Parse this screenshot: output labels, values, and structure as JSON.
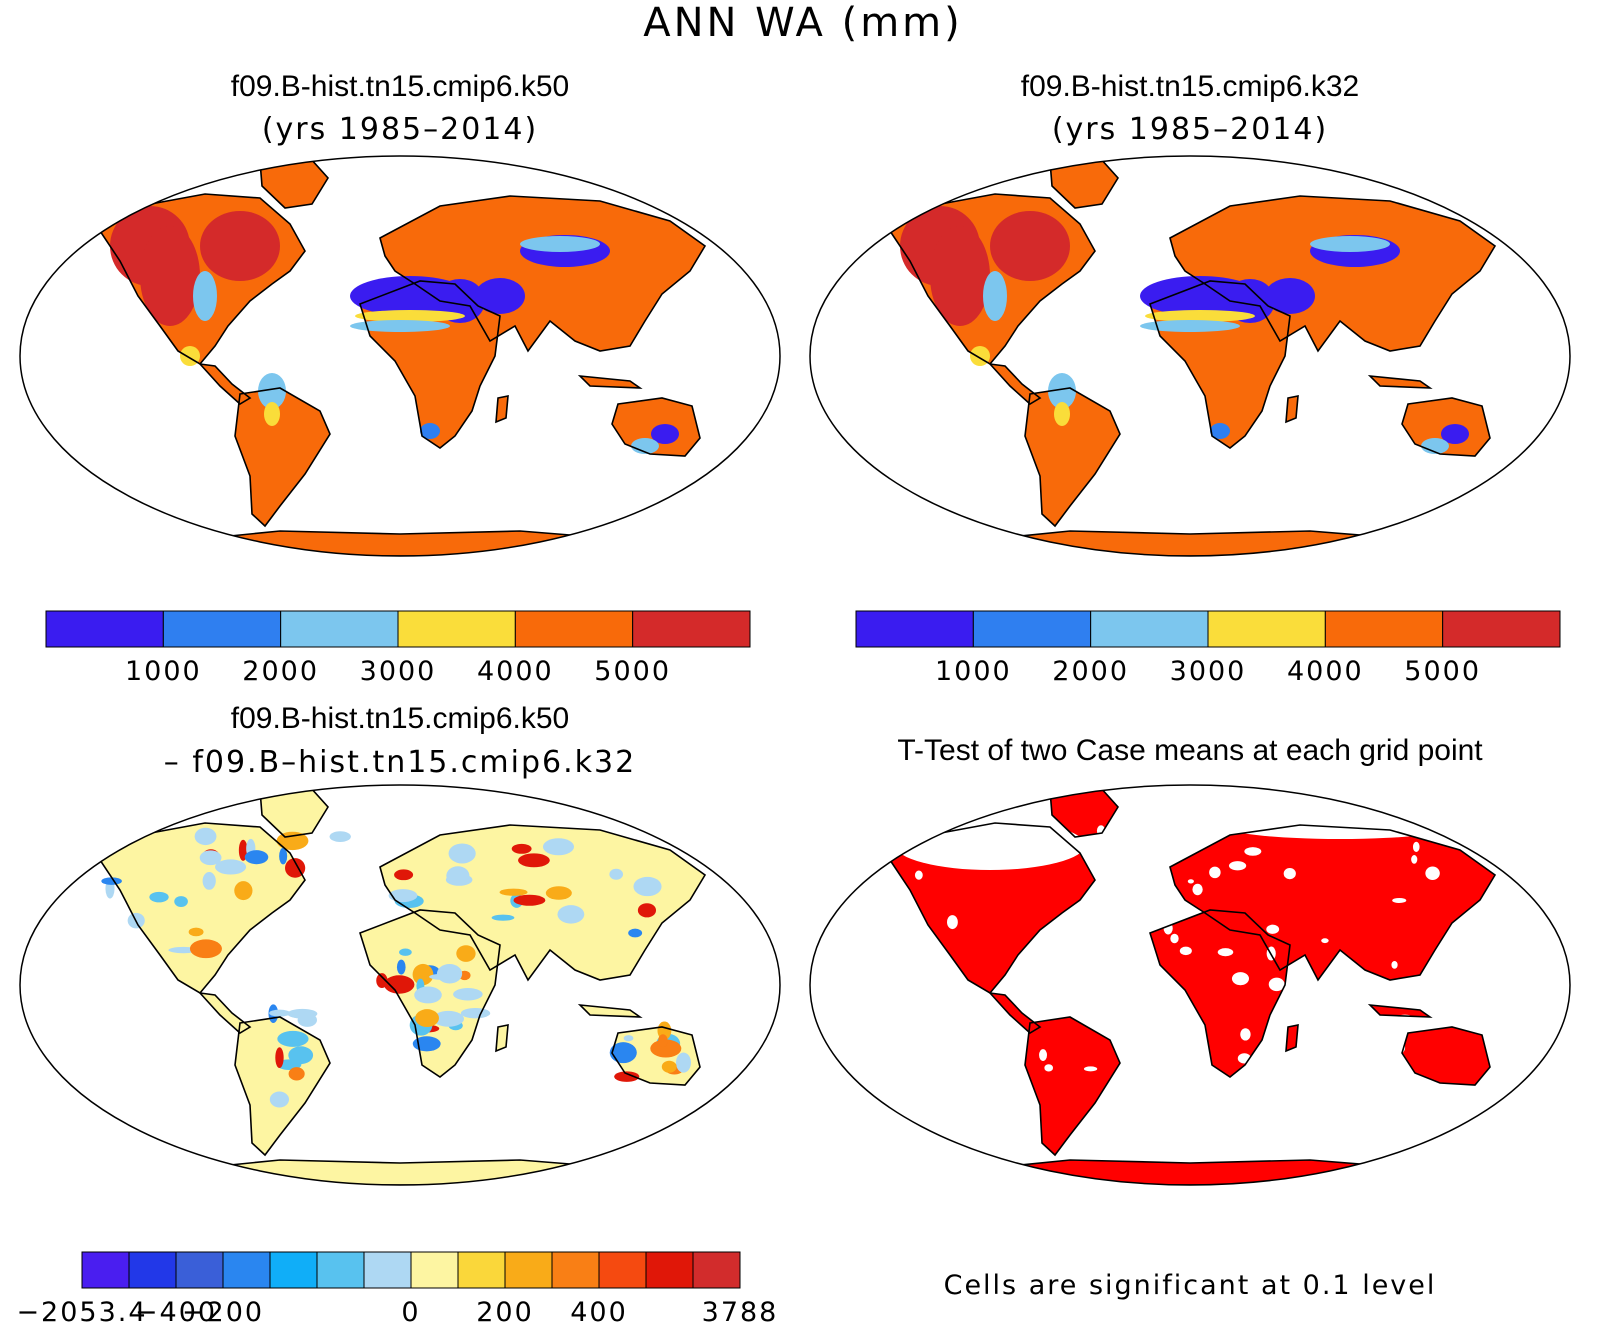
{
  "figure": {
    "title": "ANN WA (mm)"
  },
  "panels": [
    {
      "id": "a",
      "title": "f09.B-hist.tn15.cmip6.k50",
      "subtitle": "(yrs 1985–2014)"
    },
    {
      "id": "b",
      "title": "f09.B-hist.tn15.cmip6.k32",
      "subtitle": "(yrs 1985–2014)"
    },
    {
      "id": "c",
      "title": "f09.B-hist.tn15.cmip6.k50",
      "subtitle": "– f09.B–hist.tn15.cmip6.k32"
    },
    {
      "id": "d",
      "title": "T-Test of two Case means at each grid point",
      "subtitle": ""
    }
  ],
  "colorbars": {
    "abs": {
      "colors": [
        "#3a1cf0",
        "#2f7ff0",
        "#7cc6ee",
        "#fadd3a",
        "#f86a0a",
        "#d42a2a"
      ],
      "labels": [
        "1000",
        "2000",
        "3000",
        "4000",
        "5000"
      ]
    },
    "diff": {
      "colors": [
        "#4a1ef0",
        "#2238e8",
        "#3a5fd8",
        "#2a86f0",
        "#10aef8",
        "#58c2ef",
        "#aed8f3",
        "#fdf5a2",
        "#fad73a",
        "#f9ab18",
        "#f97f15",
        "#f54a10",
        "#e01708",
        "#d22c2c"
      ],
      "labels": [
        "−2053.4",
        "−400",
        "−200",
        "0",
        "200",
        "400",
        "3788"
      ]
    }
  },
  "significance_note": "Cells are significant at 0.1 level",
  "map_colors": {
    "abs_high": "#d42a2a",
    "abs_mid": "#f86a0a",
    "abs_dry": "#3a1cf0",
    "diff_base": "#fdf5a2",
    "ttest": "#ff0000"
  }
}
